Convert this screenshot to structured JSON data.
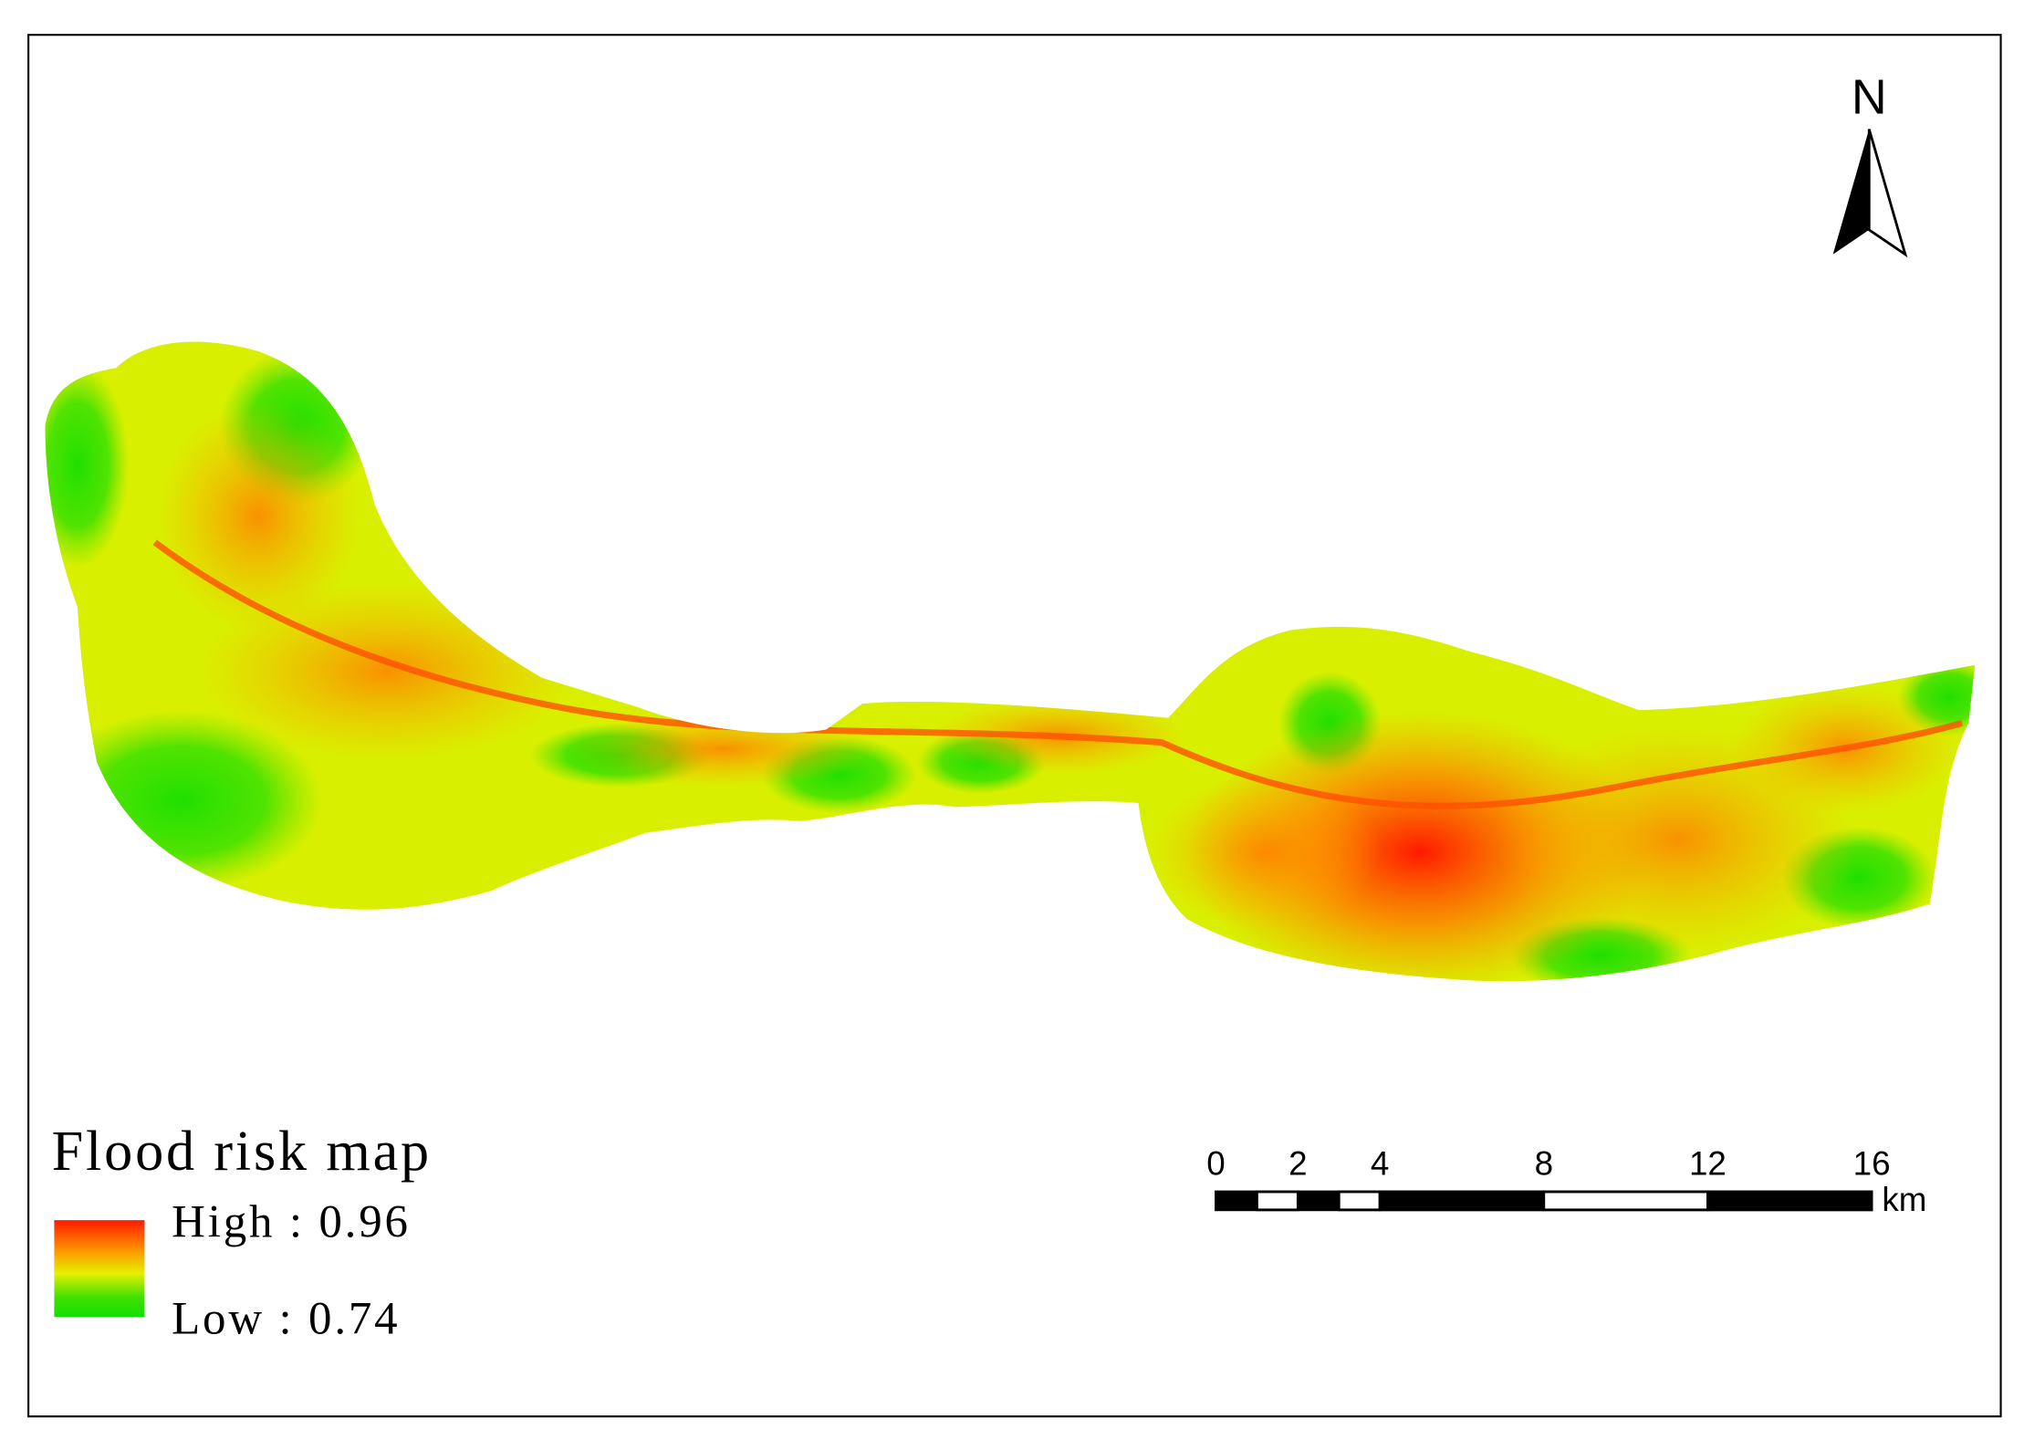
{
  "north_label": "N",
  "legend": {
    "title": "Flood risk map",
    "high": "High : 0.96",
    "low": "Low : 0.74"
  },
  "scale_bar": {
    "ticks": [
      0,
      2,
      4,
      8,
      12,
      16
    ],
    "unit": "km"
  }
}
